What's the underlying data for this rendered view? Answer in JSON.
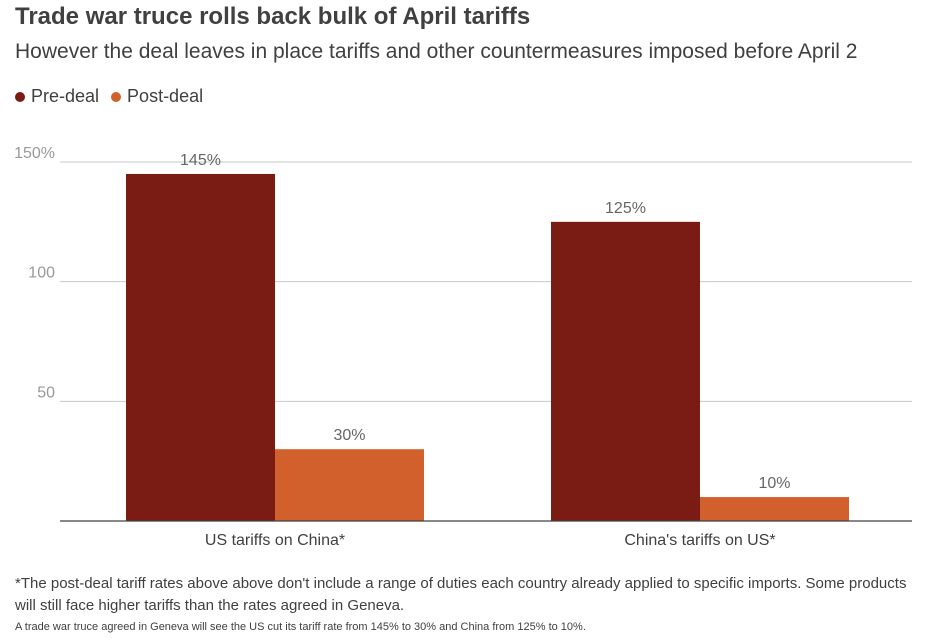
{
  "header": {
    "title": "Trade war truce rolls back bulk of April tariffs",
    "subtitle": "However the deal leaves in place tariffs and other countermeasures imposed before April 2"
  },
  "legend": {
    "items": [
      {
        "label": "Pre-deal",
        "color": "#7b1c14"
      },
      {
        "label": "Post-deal",
        "color": "#d2602c"
      }
    ]
  },
  "chart_data": {
    "type": "bar",
    "title": "Trade war truce rolls back bulk of April tariffs",
    "subtitle": "However the deal leaves in place tariffs and other countermeasures imposed before April 2",
    "categories": [
      "US tariffs on China*",
      "China's tariffs on US*"
    ],
    "series": [
      {
        "name": "Pre-deal",
        "values": [
          145,
          125
        ],
        "labels": [
          "145%",
          "125%"
        ],
        "color": "#7b1c14"
      },
      {
        "name": "Post-deal",
        "values": [
          30,
          10
        ],
        "labels": [
          "30%",
          "10%"
        ],
        "color": "#d2602c"
      }
    ],
    "yticks": [
      50,
      100,
      150
    ],
    "ytick_labels": [
      "50",
      "100",
      "150%"
    ],
    "ylim": [
      0,
      150
    ],
    "grid": true,
    "legend_position": "top-left"
  },
  "footnote": "*The post-deal tariff rates above above don't include a range of duties each country already applied to specific imports. Some products will still face higher tariffs than the rates agreed in Geneva.",
  "source": "A trade war truce agreed in Geneva will see the US cut its tariff rate from 145% to 30% and China from 125% to 10%."
}
